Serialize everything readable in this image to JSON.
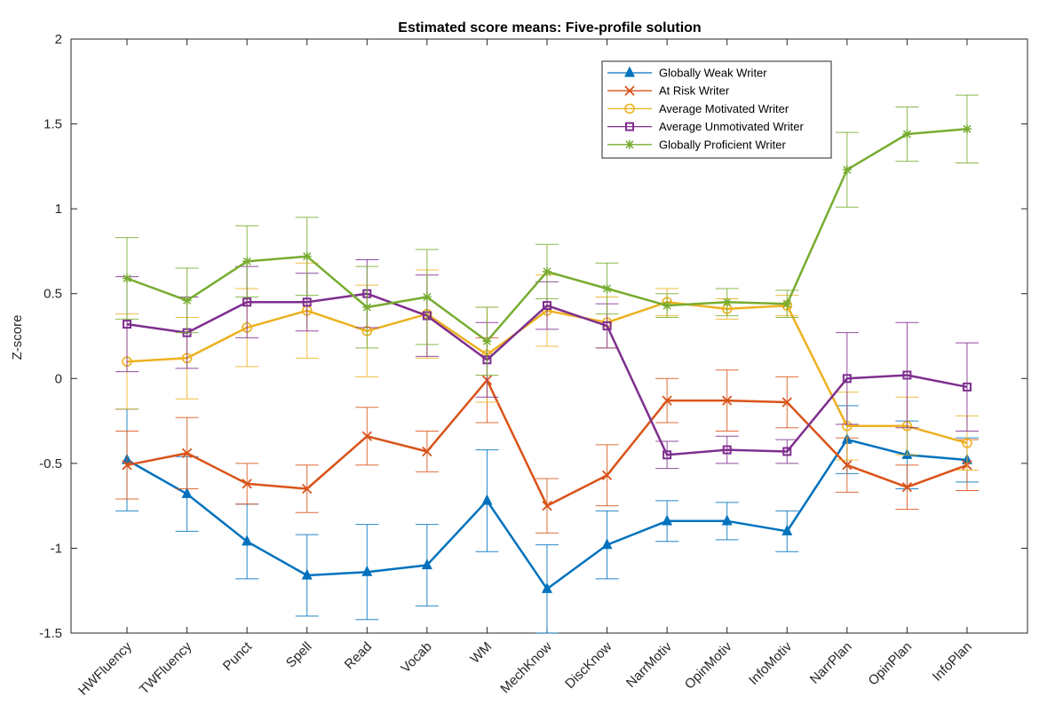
{
  "chart_data": {
    "type": "line",
    "title": "Estimated score means: Five-profile solution",
    "xlabel": "",
    "ylabel": "Z-score",
    "ylim": [
      -1.5,
      2
    ],
    "yticks": [
      "-1.5",
      "-1",
      "-0.5",
      "0",
      "0.5",
      "1",
      "1.5",
      "2"
    ],
    "categories": [
      "HWFluency",
      "TWFluency",
      "Punct",
      "Spell",
      "Read",
      "Vocab",
      "WM",
      "MechKnow",
      "DiscKnow",
      "NarrMotiv",
      "OpinMotiv",
      "InfoMotiv",
      "NarrPlan",
      "OpinPlan",
      "InfoPlan"
    ],
    "grid": false,
    "legend_position": "top-right",
    "series": [
      {
        "name": "Globally Weak Writer",
        "color": "#0072BD",
        "marker": "triangle",
        "values": [
          -0.48,
          -0.68,
          -0.96,
          -1.16,
          -1.14,
          -1.1,
          -0.72,
          -1.24,
          -0.98,
          -0.84,
          -0.84,
          -0.9,
          -0.36,
          -0.45,
          -0.48
        ],
        "error": [
          0.3,
          0.22,
          0.22,
          0.24,
          0.28,
          0.24,
          0.3,
          0.26,
          0.2,
          0.12,
          0.11,
          0.12,
          0.2,
          0.2,
          0.13
        ]
      },
      {
        "name": "At Risk Writer",
        "color": "#D95319",
        "marker": "x",
        "values": [
          -0.51,
          -0.44,
          -0.62,
          -0.65,
          -0.34,
          -0.43,
          -0.01,
          -0.75,
          -0.57,
          -0.13,
          -0.13,
          -0.14,
          -0.51,
          -0.64,
          -0.51
        ],
        "error": [
          0.2,
          0.21,
          0.12,
          0.14,
          0.17,
          0.12,
          0.25,
          0.16,
          0.18,
          0.13,
          0.18,
          0.15,
          0.16,
          0.13,
          0.15
        ]
      },
      {
        "name": "Average Motivated Writer",
        "color": "#EDB120",
        "marker": "circle",
        "values": [
          0.1,
          0.12,
          0.3,
          0.4,
          0.28,
          0.38,
          0.14,
          0.4,
          0.33,
          0.45,
          0.41,
          0.43,
          -0.28,
          -0.28,
          -0.38
        ],
        "error": [
          0.28,
          0.24,
          0.23,
          0.28,
          0.27,
          0.26,
          0.28,
          0.21,
          0.15,
          0.08,
          0.06,
          0.06,
          0.2,
          0.17,
          0.16
        ]
      },
      {
        "name": "Average Unmotivated Writer",
        "color": "#7E2F8E",
        "marker": "square",
        "values": [
          0.32,
          0.27,
          0.45,
          0.45,
          0.5,
          0.37,
          0.11,
          0.43,
          0.31,
          -0.45,
          -0.42,
          -0.43,
          0.0,
          0.02,
          -0.05
        ],
        "error": [
          0.28,
          0.21,
          0.21,
          0.17,
          0.2,
          0.24,
          0.22,
          0.14,
          0.13,
          0.08,
          0.08,
          0.07,
          0.27,
          0.31,
          0.26
        ]
      },
      {
        "name": "Globally Proficient Writer",
        "color": "#77AC30",
        "marker": "asterisk",
        "values": [
          0.59,
          0.46,
          0.69,
          0.72,
          0.42,
          0.48,
          0.22,
          0.63,
          0.53,
          0.43,
          0.45,
          0.44,
          1.23,
          1.44,
          1.47
        ],
        "error": [
          0.24,
          0.19,
          0.21,
          0.23,
          0.24,
          0.28,
          0.2,
          0.16,
          0.15,
          0.07,
          0.08,
          0.08,
          0.22,
          0.16,
          0.2
        ]
      }
    ]
  }
}
